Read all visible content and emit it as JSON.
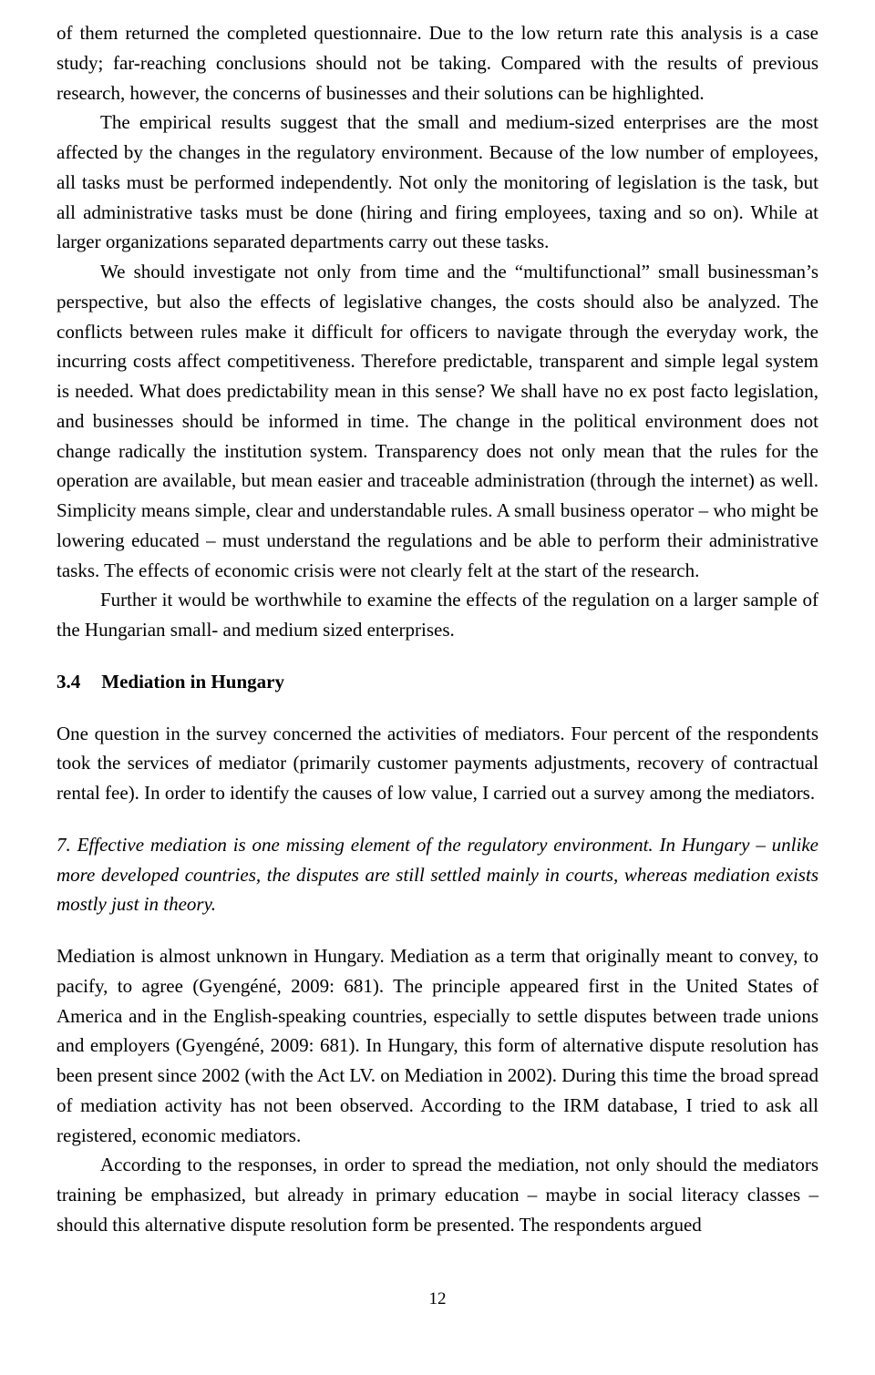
{
  "p1": "of them returned the completed questionnaire. Due to the low return rate this analysis is a case study; far-reaching conclusions should not be taking. Compared with the results of previous research, however, the concerns of businesses and their solutions can be highlighted.",
  "p2": "The empirical results suggest that the small and medium-sized enterprises are the most affected by the changes in the regulatory environment. Because of the low number of employees, all tasks must be performed independently. Not only the monitoring of legislation is the task, but all administrative tasks must be done (hiring and firing employees, taxing and so on). While at larger organizations separated departments carry out these tasks.",
  "p3": "We should investigate not only from time and the “multifunctional” small businessman’s perspective, but also the effects of legislative changes, the costs should also be analyzed. The conflicts between rules make it difficult for officers to navigate through the everyday work, the incurring costs affect competitiveness. Therefore predictable, transparent and simple legal system is needed. What does predictability mean in this sense? We shall have no ex post facto legislation, and businesses should be informed in time. The change in the political environment does not change radically the institution system. Transparency does not only mean that the rules for the operation are available, but mean easier and traceable administration (through the internet) as well. Simplicity means simple, clear and understandable rules. A small business operator – who might be lowering educated – must understand the regulations and be able to perform their administrative tasks. The effects of economic crisis were not clearly felt at the start of the research.",
  "p4": "Further it would be worthwhile to examine the effects of the regulation on a larger sample of the Hungarian small- and medium sized enterprises.",
  "heading_num": "3.4",
  "heading_title": "Mediation in Hungary",
  "p5": "One question in the survey concerned the activities of mediators. Four percent of the respondents took the services of mediator (primarily customer payments adjustments, recovery of contractual rental fee). In order to identify the causes of low value, I carried out a survey among the mediators.",
  "p6": "7. Effective mediation is one missing element of the regulatory environment. In Hungary – unlike more developed countries, the disputes are still settled mainly in courts, whereas mediation exists mostly just in theory.",
  "p7": "Mediation is almost unknown in Hungary. Mediation as a term that originally meant to convey, to pacify, to agree (Gyengéné, 2009: 681). The principle appeared first in the United States of America and in the English-speaking countries, especially to settle disputes between trade unions and employers (Gyengéné, 2009: 681).  In Hungary, this form of alternative dispute resolution has been present since 2002 (with the Act LV. on Mediation in 2002). During this time the broad spread of mediation activity has not been observed. According to the IRM database, I tried to ask all registered, economic mediators.",
  "p8": "According to the responses, in order to spread the mediation, not only should the mediators training be emphasized, but already in primary education – maybe in social literacy classes – should this alternative dispute resolution form be presented. The respondents argued",
  "page_number": "12"
}
